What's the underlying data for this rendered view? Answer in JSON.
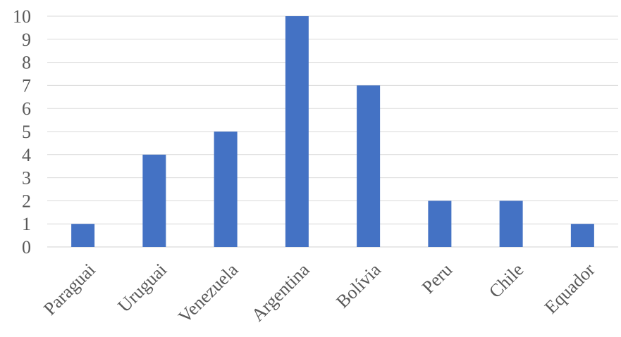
{
  "chart_data": {
    "type": "bar",
    "categories": [
      "Paraguai",
      "Uruguai",
      "Venezuela",
      "Argentina",
      "Bolívia",
      "Peru",
      "Chile",
      "Equador"
    ],
    "values": [
      1,
      4,
      5,
      10,
      7,
      2,
      2,
      1
    ],
    "title": "",
    "xlabel": "",
    "ylabel": "",
    "ylim": [
      0,
      10
    ],
    "yticks": [
      0,
      1,
      2,
      3,
      4,
      5,
      6,
      7,
      8,
      9,
      10
    ],
    "grid": true,
    "legend": "none",
    "bar_color": "#4472c4"
  }
}
